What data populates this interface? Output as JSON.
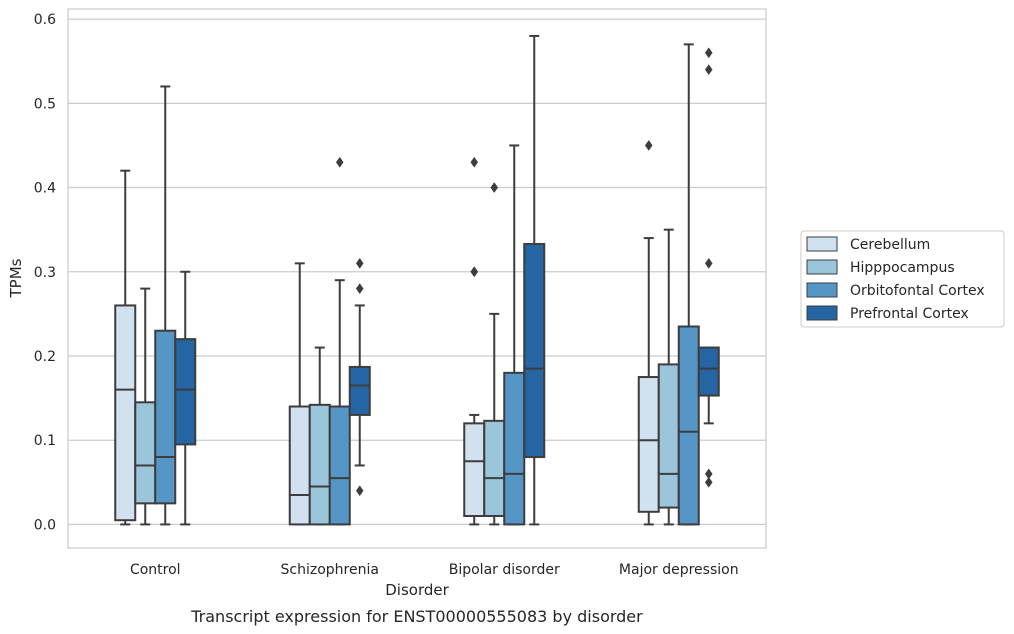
{
  "chart_data": {
    "type": "box",
    "title": "",
    "caption": "Transcript expression for ENST00000555083 by disorder",
    "xlabel": "Disorder",
    "ylabel": "TPMs",
    "ylim": [
      -0.028,
      0.612
    ],
    "yticks": [
      0.0,
      0.1,
      0.2,
      0.3,
      0.4,
      0.5,
      0.6
    ],
    "ytick_labels": [
      "0.0",
      "0.1",
      "0.2",
      "0.3",
      "0.4",
      "0.5",
      "0.6"
    ],
    "grid": "horizontal",
    "legend_position": "right",
    "categories": [
      "Control",
      "Schizophrenia",
      "Bipolar disorder",
      "Major depression"
    ],
    "series": [
      {
        "name": "Cerebellum",
        "color": "#d2e1f0",
        "boxes": [
          {
            "whislo": 0.0,
            "q1": 0.005,
            "med": 0.16,
            "q3": 0.26,
            "whishi": 0.42,
            "fliers": []
          },
          {
            "whislo": 0.0,
            "q1": 0.0,
            "med": 0.035,
            "q3": 0.14,
            "whishi": 0.31,
            "fliers": []
          },
          {
            "whislo": 0.0,
            "q1": 0.01,
            "med": 0.075,
            "q3": 0.12,
            "whishi": 0.13,
            "fliers": [
              0.3,
              0.3,
              0.43
            ]
          },
          {
            "whislo": 0.0,
            "q1": 0.015,
            "med": 0.1,
            "q3": 0.175,
            "whishi": 0.34,
            "fliers": [
              0.45
            ]
          }
        ]
      },
      {
        "name": "Hipppocampus",
        "color": "#9ac5db",
        "boxes": [
          {
            "whislo": 0.0,
            "q1": 0.025,
            "med": 0.07,
            "q3": 0.145,
            "whishi": 0.28,
            "fliers": []
          },
          {
            "whislo": 0.0,
            "q1": 0.0,
            "med": 0.045,
            "q3": 0.142,
            "whishi": 0.21,
            "fliers": []
          },
          {
            "whislo": 0.0,
            "q1": 0.01,
            "med": 0.055,
            "q3": 0.123,
            "whishi": 0.25,
            "fliers": [
              0.4
            ]
          },
          {
            "whislo": 0.0,
            "q1": 0.02,
            "med": 0.06,
            "q3": 0.19,
            "whishi": 0.35,
            "fliers": []
          }
        ]
      },
      {
        "name": "Orbitofontal Cortex",
        "color": "#5596c6",
        "boxes": [
          {
            "whislo": 0.0,
            "q1": 0.025,
            "med": 0.08,
            "q3": 0.23,
            "whishi": 0.52,
            "fliers": []
          },
          {
            "whislo": 0.0,
            "q1": 0.0,
            "med": 0.055,
            "q3": 0.14,
            "whishi": 0.29,
            "fliers": [
              0.43
            ]
          },
          {
            "whislo": 0.0,
            "q1": 0.0,
            "med": 0.06,
            "q3": 0.18,
            "whishi": 0.45,
            "fliers": []
          },
          {
            "whislo": 0.0,
            "q1": 0.0,
            "med": 0.11,
            "q3": 0.235,
            "whishi": 0.57,
            "fliers": []
          }
        ]
      },
      {
        "name": "Prefrontal Cortex",
        "color": "#2565a3",
        "boxes": [
          {
            "whislo": 0.0,
            "q1": 0.095,
            "med": 0.16,
            "q3": 0.22,
            "whishi": 0.3,
            "fliers": []
          },
          {
            "whislo": 0.07,
            "q1": 0.13,
            "med": 0.165,
            "q3": 0.187,
            "whishi": 0.26,
            "fliers": [
              0.04,
              0.28,
              0.31
            ]
          },
          {
            "whislo": 0.0,
            "q1": 0.08,
            "med": 0.185,
            "q3": 0.333,
            "whishi": 0.58,
            "fliers": []
          },
          {
            "whislo": 0.12,
            "q1": 0.153,
            "med": 0.185,
            "q3": 0.21,
            "whishi": 0.21,
            "fliers": [
              0.05,
              0.06,
              0.31,
              0.54,
              0.56
            ]
          }
        ]
      }
    ]
  }
}
